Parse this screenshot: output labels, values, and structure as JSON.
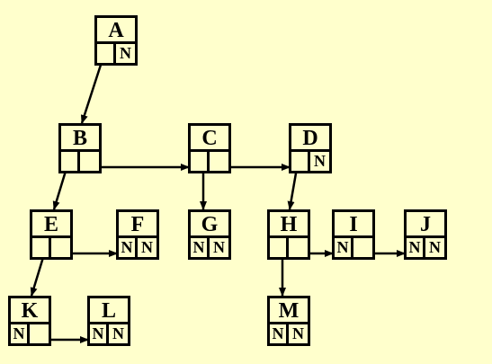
{
  "nodes": {
    "A": {
      "label": "A",
      "left_ptr": "",
      "right_ptr": "N"
    },
    "B": {
      "label": "B",
      "left_ptr": "",
      "right_ptr": ""
    },
    "C": {
      "label": "C",
      "left_ptr": "",
      "right_ptr": ""
    },
    "D": {
      "label": "D",
      "left_ptr": "",
      "right_ptr": "N"
    },
    "E": {
      "label": "E",
      "left_ptr": "",
      "right_ptr": ""
    },
    "F": {
      "label": "F",
      "left_ptr": "N",
      "right_ptr": "N"
    },
    "G": {
      "label": "G",
      "left_ptr": "N",
      "right_ptr": "N"
    },
    "H": {
      "label": "H",
      "left_ptr": "",
      "right_ptr": ""
    },
    "I": {
      "label": "I",
      "left_ptr": "N",
      "right_ptr": ""
    },
    "J": {
      "label": "J",
      "left_ptr": "N",
      "right_ptr": "N"
    },
    "K": {
      "label": "K",
      "left_ptr": "N",
      "right_ptr": ""
    },
    "L": {
      "label": "L",
      "left_ptr": "N",
      "right_ptr": "N"
    },
    "M": {
      "label": "M",
      "left_ptr": "N",
      "right_ptr": "N"
    }
  },
  "edges": [
    {
      "from": "A",
      "to": "B",
      "kind": "first-child"
    },
    {
      "from": "B",
      "to": "C",
      "kind": "next-sibling"
    },
    {
      "from": "C",
      "to": "D",
      "kind": "next-sibling"
    },
    {
      "from": "B",
      "to": "E",
      "kind": "first-child"
    },
    {
      "from": "E",
      "to": "F",
      "kind": "next-sibling"
    },
    {
      "from": "C",
      "to": "G",
      "kind": "first-child"
    },
    {
      "from": "D",
      "to": "H",
      "kind": "first-child"
    },
    {
      "from": "H",
      "to": "I",
      "kind": "next-sibling"
    },
    {
      "from": "I",
      "to": "J",
      "kind": "next-sibling"
    },
    {
      "from": "E",
      "to": "K",
      "kind": "first-child"
    },
    {
      "from": "K",
      "to": "L",
      "kind": "next-sibling"
    },
    {
      "from": "H",
      "to": "M",
      "kind": "first-child"
    }
  ],
  "colors": {
    "background": "#ffffcc",
    "stroke": "#000000"
  }
}
